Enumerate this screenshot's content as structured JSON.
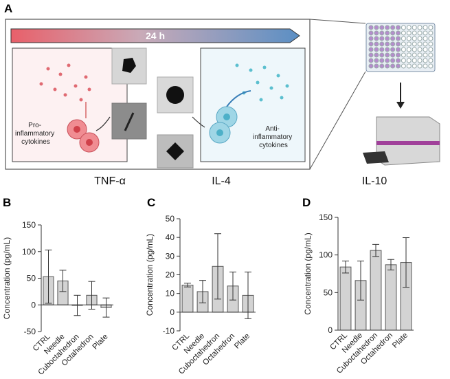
{
  "diagram": {
    "panel": "A",
    "timeline": "24 h",
    "left_label": [
      "Pro-",
      "inflammatory",
      "cytokines"
    ],
    "right_label": [
      "Anti-",
      "inflammatory",
      "cytokines"
    ]
  },
  "chart_data": [
    {
      "type": "bar",
      "panel": "B",
      "title": "TNF-α",
      "y_label": "Concentration (pg/mL)",
      "color": "#d3d3d3",
      "categories": [
        "CTRL",
        "Needle",
        "Cuboctahedron",
        "Octahedron",
        "Plate"
      ],
      "values": [
        53,
        45,
        -1,
        18,
        -5
      ],
      "errors": [
        50,
        20,
        19,
        26,
        18
      ],
      "ylim": [
        -50,
        150
      ],
      "yticks": [
        -50,
        0,
        50,
        100,
        150
      ]
    },
    {
      "type": "bar",
      "panel": "C",
      "title": "IL-4",
      "y_label": "Concentration (pg/mL)",
      "color": "#d3d3d3",
      "categories": [
        "CTRL",
        "Needle",
        "Cuboctahedron",
        "Octahedron",
        "Plate"
      ],
      "values": [
        14.5,
        11,
        24.5,
        14,
        9
      ],
      "errors": [
        1,
        6,
        17.5,
        7.5,
        12.5
      ],
      "ylim": [
        -10,
        50
      ],
      "yticks": [
        -10,
        0,
        10,
        20,
        30,
        40,
        50
      ]
    },
    {
      "type": "bar",
      "panel": "D",
      "title": "IL-10",
      "y_label": "Concentration (pg/mL)",
      "color": "#d3d3d3",
      "categories": [
        "CTRL",
        "Needle",
        "Cuboctahedron",
        "Octahedron",
        "Plate"
      ],
      "values": [
        84,
        66,
        106,
        87,
        90
      ],
      "errors": [
        8,
        26,
        8,
        7,
        33
      ],
      "ylim": [
        0,
        150
      ],
      "yticks": [
        0,
        50,
        100,
        150
      ]
    }
  ]
}
